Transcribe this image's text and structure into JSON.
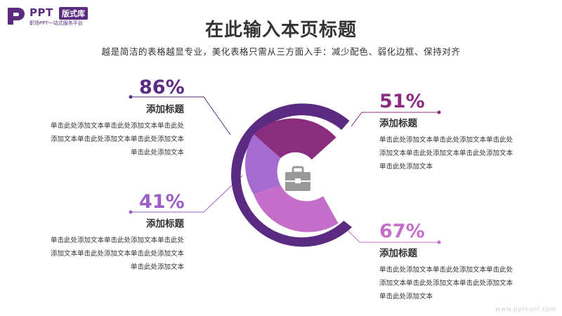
{
  "logo": {
    "name": "PPT",
    "badge": "版式库",
    "tagline": "职场PPT一站式服务平台"
  },
  "header": {
    "title": "在此输入本页标题",
    "subtitle": "越是简洁的表格越显专业，美化表格只需从三方面入手：减少配色、弱化边框、保持对齐"
  },
  "items": [
    {
      "percent": "86%",
      "heading": "添加标题",
      "lines": [
        "单击此处添加文本单击此处添加文本单击此处",
        "添加文本单击此处添加文本单击此处添加文本",
        "单击此处添加文本"
      ],
      "color": "#5b2b82"
    },
    {
      "percent": "41%",
      "heading": "添加标题",
      "lines": [
        "单击此处添加文本单击此处添加文本单击此处",
        "添加文本单击此处添加文本单击此处添加文本",
        "单击此处添加文本"
      ],
      "color": "#9a5ec7"
    },
    {
      "percent": "51%",
      "heading": "添加标题",
      "lines": [
        "单击此处添加文本单击此处添加文本单击此处",
        "添加文本单击此处添加文本单击此处添加文本",
        "单击此处添加文本"
      ],
      "color": "#8b2d7e"
    },
    {
      "percent": "67%",
      "heading": "添加标题",
      "lines": [
        "单击此处添加文本单击此处添加文本单击此处",
        "添加文本单击此处添加文本单击此处添加文本",
        "单击此处添加文本"
      ],
      "color": "#c66fc8"
    }
  ],
  "colors": {
    "outer_ring": "#5b2b82",
    "segment_top": "#8b2d7e",
    "segment_left": "#a56bd1",
    "segment_bottom": "#c56ec9",
    "icon": "#999999"
  },
  "center_icon": "briefcase-icon",
  "watermark": "www.pptcool.com"
}
